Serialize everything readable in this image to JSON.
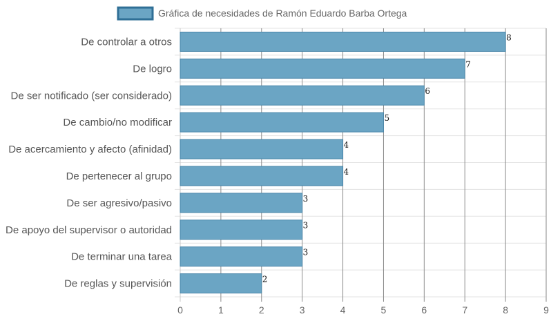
{
  "chart_data": {
    "type": "bar",
    "orientation": "horizontal",
    "legend": {
      "label": "Gráfica de necesidades de Ramón Eduardo Barba Ortega",
      "placement": "top-center"
    },
    "categories": [
      "De controlar a otros",
      "De logro",
      "De ser notificado (ser considerado)",
      "De cambio/no modificar",
      "De acercamiento y afecto (afinidad)",
      "De pertenecer al grupo",
      "De ser agresivo/pasivo",
      "De apoyo del supervisor o autoridad",
      "De terminar una tarea",
      "De reglas y supervisión"
    ],
    "series": [
      {
        "name": "Gráfica de necesidades de Ramón Eduardo Barba Ortega",
        "values": [
          8,
          7,
          6,
          5,
          4,
          4,
          3,
          3,
          3,
          2
        ]
      }
    ],
    "xlim": [
      0,
      9
    ],
    "x_ticks": [
      "0",
      "1",
      "2",
      "3",
      "4",
      "5",
      "6",
      "7",
      "8",
      "9"
    ],
    "grid": true,
    "data_labels": true,
    "colors": {
      "bar_fill": "#6ba5c4",
      "bar_stroke": "#4a87aa",
      "legend_fill": "#6ba5c4",
      "legend_stroke": "#2f6f96",
      "grid": "#e3e3e3",
      "axis": "#999999"
    }
  }
}
